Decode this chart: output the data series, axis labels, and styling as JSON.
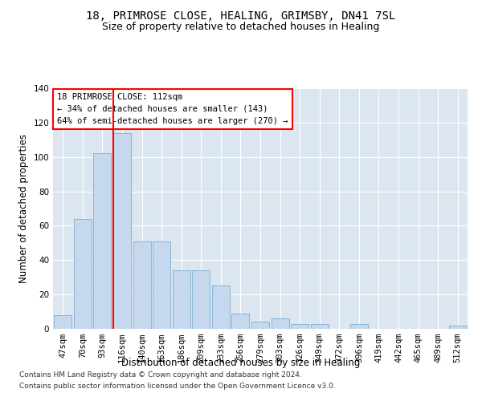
{
  "title": "18, PRIMROSE CLOSE, HEALING, GRIMSBY, DN41 7SL",
  "subtitle": "Size of property relative to detached houses in Healing",
  "xlabel": "Distribution of detached houses by size in Healing",
  "ylabel": "Number of detached properties",
  "bar_color": "#c5d8ed",
  "bar_edge_color": "#7aadd4",
  "background_color": "#dce6f0",
  "grid_color": "#ffffff",
  "categories": [
    "47sqm",
    "70sqm",
    "93sqm",
    "116sqm",
    "140sqm",
    "163sqm",
    "186sqm",
    "209sqm",
    "233sqm",
    "256sqm",
    "279sqm",
    "303sqm",
    "326sqm",
    "349sqm",
    "372sqm",
    "396sqm",
    "419sqm",
    "442sqm",
    "465sqm",
    "489sqm",
    "512sqm"
  ],
  "values": [
    8,
    64,
    102,
    114,
    51,
    51,
    34,
    34,
    25,
    9,
    4,
    6,
    3,
    3,
    0,
    3,
    0,
    0,
    0,
    0,
    2
  ],
  "ylim": [
    0,
    140
  ],
  "yticks": [
    0,
    20,
    40,
    60,
    80,
    100,
    120,
    140
  ],
  "property_line_idx": 3,
  "annotation_title": "18 PRIMROSE CLOSE: 112sqm",
  "annotation_line1": "← 34% of detached houses are smaller (143)",
  "annotation_line2": "64% of semi-detached houses are larger (270) →",
  "footnote1": "Contains HM Land Registry data © Crown copyright and database right 2024.",
  "footnote2": "Contains public sector information licensed under the Open Government Licence v3.0.",
  "title_fontsize": 10,
  "subtitle_fontsize": 9,
  "xlabel_fontsize": 8.5,
  "ylabel_fontsize": 8.5,
  "tick_fontsize": 7.5,
  "annotation_fontsize": 7.5,
  "footnote_fontsize": 6.5
}
